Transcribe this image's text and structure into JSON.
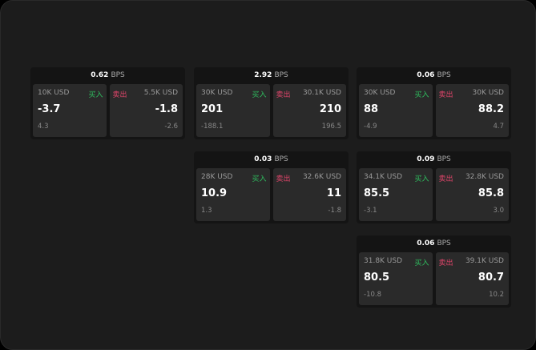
{
  "labels": {
    "bps": "BPS",
    "buy": "买入",
    "sell": "卖出"
  },
  "colors": {
    "buy": "#2fbf5f",
    "sell": "#e0456a",
    "background": "#1c1c1c"
  },
  "cards": [
    {
      "bps": "0.62",
      "bid": {
        "size": "10K USD",
        "price": "-3.7",
        "sub": "4.3"
      },
      "ask": {
        "size": "5.5K USD",
        "price": "-1.8",
        "sub": "-2.6"
      }
    },
    {
      "bps": "2.92",
      "bid": {
        "size": "30K USD",
        "price": "201",
        "sub": "-188.1"
      },
      "ask": {
        "size": "30.1K USD",
        "price": "210",
        "sub": "196.5"
      }
    },
    {
      "bps": "0.06",
      "bid": {
        "size": "30K USD",
        "price": "88",
        "sub": "-4.9"
      },
      "ask": {
        "size": "30K USD",
        "price": "88.2",
        "sub": "4.7"
      }
    },
    {
      "bps": "0.03",
      "bid": {
        "size": "28K USD",
        "price": "10.9",
        "sub": "1.3"
      },
      "ask": {
        "size": "32.6K USD",
        "price": "11",
        "sub": "-1.8"
      }
    },
    {
      "bps": "0.09",
      "bid": {
        "size": "34.1K USD",
        "price": "85.5",
        "sub": "-3.1"
      },
      "ask": {
        "size": "32.8K USD",
        "price": "85.8",
        "sub": "3.0"
      }
    },
    {
      "bps": "0.06",
      "bid": {
        "size": "31.8K USD",
        "price": "80.5",
        "sub": "-10.8"
      },
      "ask": {
        "size": "39.1K USD",
        "price": "80.7",
        "sub": "10.2"
      }
    }
  ]
}
